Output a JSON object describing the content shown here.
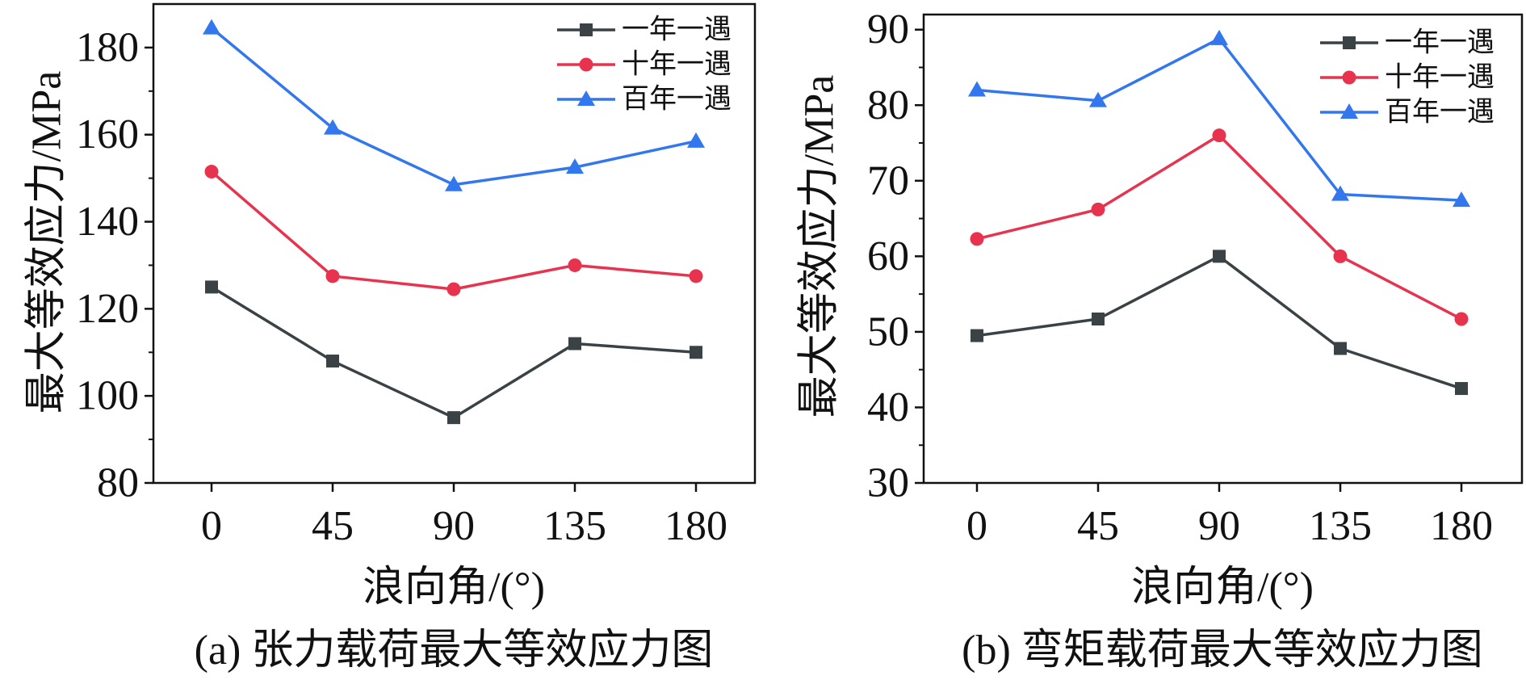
{
  "chart_data": [
    {
      "type": "line",
      "panel_caption": "(a) 张力载荷最大等效应力图",
      "xlabel": "浪向角/(°)",
      "ylabel": "最大等效应力/MPa",
      "categories": [
        0,
        45,
        90,
        135,
        180
      ],
      "xtick_labels": [
        "0",
        "45",
        "90",
        "135",
        "180"
      ],
      "ylim": [
        80,
        190
      ],
      "yticks": [
        80,
        100,
        120,
        140,
        160,
        180
      ],
      "ytick_labels": [
        "80",
        "100",
        "120",
        "140",
        "160",
        "180"
      ],
      "legend_position": "top-right",
      "series": [
        {
          "name": "一年一遇",
          "marker": "square",
          "color": "#3a4245",
          "values": [
            125,
            108,
            95,
            112,
            110
          ]
        },
        {
          "name": "十年一遇",
          "marker": "circle",
          "color": "#e8334f",
          "values": [
            151.5,
            127.5,
            124.5,
            130,
            127.5
          ]
        },
        {
          "name": "百年一遇",
          "marker": "triangle",
          "color": "#3377ee",
          "values": [
            184.5,
            161.5,
            148.5,
            152.5,
            158.5
          ]
        }
      ]
    },
    {
      "type": "line",
      "panel_caption": "(b) 弯矩载荷最大等效应力图",
      "xlabel": "浪向角/(°)",
      "ylabel": "最大等效应力/MPa",
      "categories": [
        0,
        45,
        90,
        135,
        180
      ],
      "xtick_labels": [
        "0",
        "45",
        "90",
        "135",
        "180"
      ],
      "ylim": [
        30,
        92
      ],
      "yticks": [
        30,
        40,
        50,
        60,
        70,
        80,
        90
      ],
      "ytick_labels": [
        "30",
        "40",
        "50",
        "60",
        "70",
        "80",
        "90"
      ],
      "legend_position": "top-right",
      "series": [
        {
          "name": "一年一遇",
          "marker": "square",
          "color": "#3a4245",
          "values": [
            49.5,
            51.7,
            60,
            47.8,
            42.5
          ]
        },
        {
          "name": "十年一遇",
          "marker": "circle",
          "color": "#e8334f",
          "values": [
            62.3,
            66.2,
            76,
            60,
            51.7
          ]
        },
        {
          "name": "百年一遇",
          "marker": "triangle",
          "color": "#3377ee",
          "values": [
            82,
            80.6,
            88.8,
            68.2,
            67.4
          ]
        }
      ]
    }
  ]
}
